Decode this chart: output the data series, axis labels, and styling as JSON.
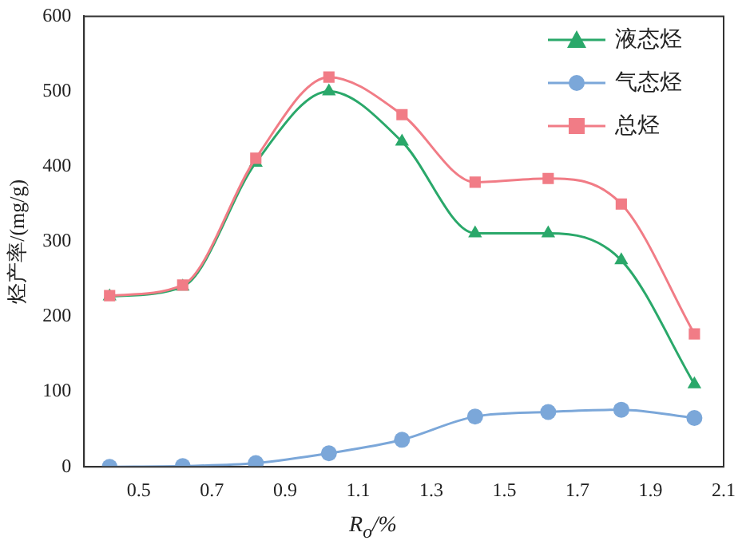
{
  "chart_data": {
    "type": "line",
    "xlabel": "R$_{o}$/%",
    "ylabel": "烃产率/(mg/g)",
    "x": [
      0.42,
      0.62,
      0.82,
      1.02,
      1.22,
      1.42,
      1.62,
      1.82,
      2.02
    ],
    "series": [
      {
        "name": "液态烃",
        "color": "#2aa86a",
        "marker": "triangle",
        "values": [
          227,
          240,
          405,
          500,
          433,
          311,
          311,
          275,
          110
        ]
      },
      {
        "name": "气态烃",
        "color": "#7ba7d9",
        "marker": "circle",
        "values": [
          0,
          1,
          5,
          18,
          36,
          67,
          73,
          76,
          65
        ]
      },
      {
        "name": "总烃",
        "color": "#f17c86",
        "marker": "square",
        "values": [
          228,
          242,
          411,
          519,
          469,
          379,
          384,
          350,
          177
        ]
      }
    ],
    "xlim": [
      0.35,
      2.1
    ],
    "xticks": [
      0.5,
      0.7,
      0.9,
      1.1,
      1.3,
      1.5,
      1.7,
      1.9,
      2.1
    ],
    "ylim": [
      0,
      600
    ],
    "yticks": [
      0,
      100,
      200,
      300,
      400,
      500,
      600
    ],
    "grid": false,
    "legend": "top right"
  }
}
